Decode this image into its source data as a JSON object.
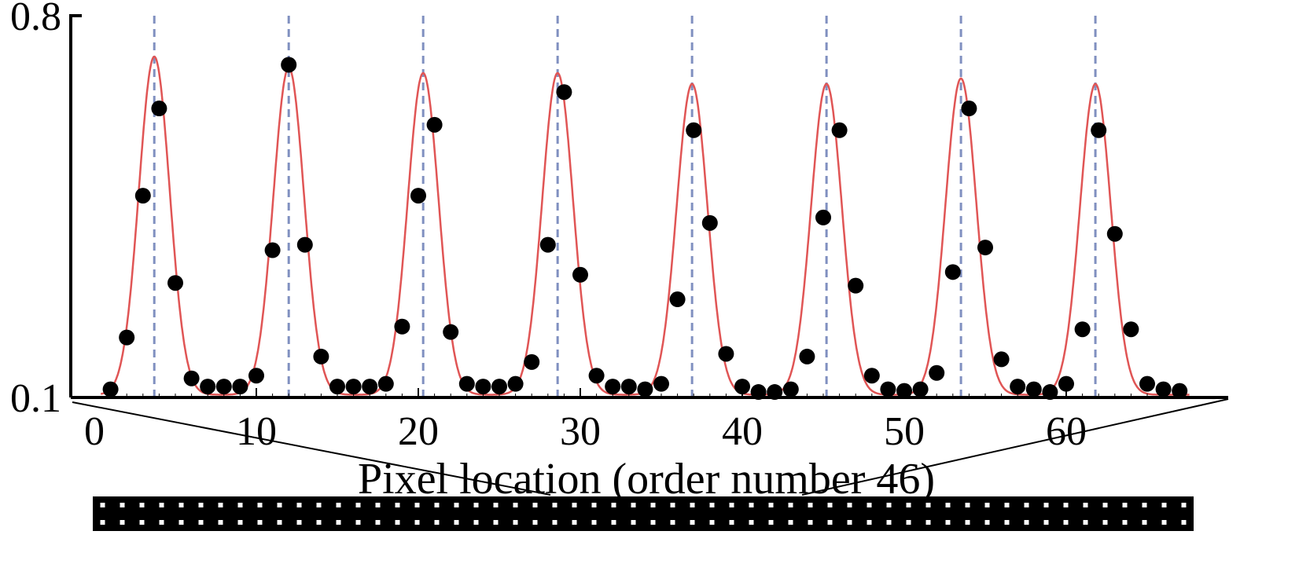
{
  "chart_data": {
    "type": "scatter",
    "title": "",
    "xlabel": "Pixel location (order number 46)",
    "ylabel": "",
    "xlim": [
      -1,
      68
    ],
    "ylim": [
      0.1,
      0.8
    ],
    "x_ticks": [
      0,
      10,
      20,
      30,
      40,
      50,
      60
    ],
    "y_ticks": [
      0.1,
      0.8
    ],
    "grid": false,
    "legend": "none",
    "peak_centers": [
      3.7,
      12.0,
      20.3,
      28.6,
      36.9,
      45.2,
      53.5,
      61.8
    ],
    "gaussian_fit": {
      "baseline": 0.105,
      "sigma": 0.95,
      "amplitudes": [
        0.62,
        0.6,
        0.59,
        0.59,
        0.57,
        0.57,
        0.58,
        0.57
      ]
    },
    "points": {
      "x": [
        1,
        2,
        3,
        4,
        5,
        6,
        7,
        8,
        9,
        10,
        11,
        12,
        13,
        14,
        15,
        16,
        17,
        18,
        19,
        20,
        21,
        22,
        23,
        24,
        25,
        26,
        27,
        28,
        29,
        30,
        31,
        32,
        33,
        34,
        35,
        36,
        37,
        38,
        39,
        40,
        41,
        42,
        43,
        44,
        45,
        46,
        47,
        48,
        49,
        50,
        51,
        52,
        53,
        54,
        55,
        56,
        57,
        58,
        59,
        60,
        61,
        62,
        63,
        64,
        65,
        66,
        67
      ],
      "y": [
        0.115,
        0.21,
        0.47,
        0.63,
        0.31,
        0.135,
        0.12,
        0.12,
        0.12,
        0.14,
        0.37,
        0.71,
        0.38,
        0.175,
        0.12,
        0.12,
        0.12,
        0.125,
        0.23,
        0.47,
        0.6,
        0.22,
        0.125,
        0.12,
        0.12,
        0.125,
        0.165,
        0.38,
        0.66,
        0.325,
        0.14,
        0.12,
        0.12,
        0.115,
        0.125,
        0.28,
        0.59,
        0.42,
        0.18,
        0.12,
        0.11,
        0.11,
        0.115,
        0.175,
        0.43,
        0.59,
        0.305,
        0.14,
        0.115,
        0.112,
        0.115,
        0.145,
        0.33,
        0.63,
        0.375,
        0.17,
        0.12,
        0.115,
        0.11,
        0.125,
        0.225,
        0.59,
        0.4,
        0.225,
        0.125,
        0.115,
        0.112
      ]
    },
    "colors": {
      "fit_line": "#e05555",
      "peak_marker_line": "#8090c0",
      "points": "#000000",
      "axes": "#000000"
    }
  },
  "sensor_strip": {
    "rows": 2,
    "columns": 56,
    "background": "#000000",
    "dot_color": "#ffffff"
  }
}
